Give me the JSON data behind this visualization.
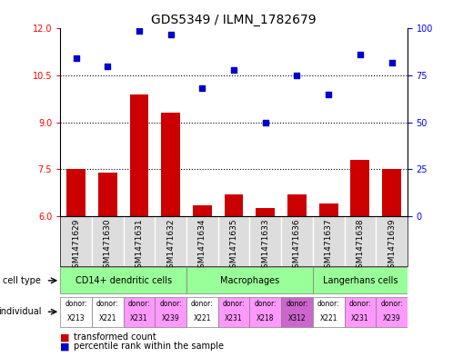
{
  "title": "GDS5349 / ILMN_1782679",
  "samples": [
    "GSM1471629",
    "GSM1471630",
    "GSM1471631",
    "GSM1471632",
    "GSM1471634",
    "GSM1471635",
    "GSM1471633",
    "GSM1471636",
    "GSM1471637",
    "GSM1471638",
    "GSM1471639"
  ],
  "transformed_count": [
    7.5,
    7.4,
    9.9,
    9.3,
    6.35,
    6.7,
    6.25,
    6.7,
    6.4,
    7.8,
    7.5
  ],
  "percentile_rank": [
    84,
    80,
    99,
    97,
    68,
    78,
    50,
    75,
    65,
    86,
    82
  ],
  "ylim_left": [
    6,
    12
  ],
  "ylim_right": [
    0,
    100
  ],
  "yticks_left": [
    6,
    7.5,
    9,
    10.5,
    12
  ],
  "yticks_right": [
    0,
    25,
    50,
    75,
    100
  ],
  "bar_color": "#cc0000",
  "dot_color": "#0000cc",
  "cell_types": [
    {
      "label": "CD14+ dendritic cells",
      "start": 0,
      "end": 4,
      "color": "#99ff99"
    },
    {
      "label": "Macrophages",
      "start": 4,
      "end": 8,
      "color": "#99ff99"
    },
    {
      "label": "Langerhans cells",
      "start": 8,
      "end": 11,
      "color": "#99ff99"
    }
  ],
  "individuals": [
    "X213",
    "X221",
    "X231",
    "X239",
    "X221",
    "X231",
    "X218",
    "X312",
    "X221",
    "X231",
    "X239"
  ],
  "individual_colors": [
    "#ffffff",
    "#ffffff",
    "#ff99ff",
    "#ff99ff",
    "#ffffff",
    "#ff99ff",
    "#ff99ff",
    "#cc66cc",
    "#ffffff",
    "#ff99ff",
    "#ff99ff"
  ],
  "cell_type_label": "cell type",
  "individual_label": "individual",
  "legend_bar": "transformed count",
  "legend_dot": "percentile rank within the sample",
  "background_color": "#ffffff",
  "sample_bg_color": "#dddddd"
}
